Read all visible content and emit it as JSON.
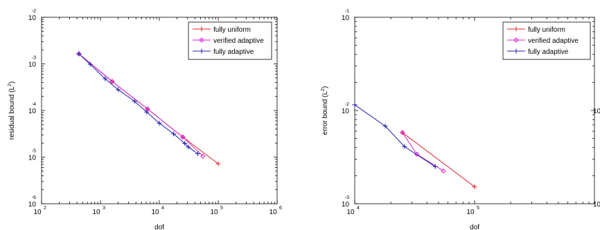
{
  "chart_data": [
    {
      "type": "line",
      "xscale": "log",
      "yscale": "log",
      "xlim": [
        100,
        1000000
      ],
      "ylim": [
        1e-06,
        0.01
      ],
      "xlabel": "dof",
      "ylabel": "residual bound (L",
      "ylabel_sup": "2",
      "ylabel_end": ")",
      "xticks": [
        {
          "base": "10",
          "exp": "2",
          "v": 100
        },
        {
          "base": "10",
          "exp": "3",
          "v": 1000
        },
        {
          "base": "10",
          "exp": "4",
          "v": 10000
        },
        {
          "base": "10",
          "exp": "5",
          "v": 100000
        },
        {
          "base": "10",
          "exp": "6",
          "v": 1000000
        }
      ],
      "yticks": [
        {
          "base": "10",
          "exp": "-2",
          "v": 0.01
        },
        {
          "base": "10",
          "exp": "-3",
          "v": 0.001
        },
        {
          "base": "10",
          "exp": "-4",
          "v": 0.0001
        },
        {
          "base": "10",
          "exp": "-5",
          "v": 1e-05
        },
        {
          "base": "10",
          "exp": "-6",
          "v": 1e-06
        }
      ],
      "legend_position": "top-right",
      "series": [
        {
          "name": "fully uniform",
          "color": "#e0202a",
          "marker": "plus",
          "x": [
            430,
            1580,
            6300,
            25000,
            100000
          ],
          "y": [
            0.00165,
            0.00042,
            0.000108,
            2.7e-05,
            7.2e-06
          ]
        },
        {
          "name": "verified adaptive",
          "color": "#d81fd8",
          "marker": "diamond",
          "x": [
            430,
            1580,
            6300,
            25000,
            55000
          ],
          "y": [
            0.00165,
            0.00042,
            0.000108,
            2.7e-05,
            1.05e-05
          ]
        },
        {
          "name": "fully adaptive",
          "color": "#1c1ca8",
          "marker": "plus",
          "x": [
            430,
            670,
            1200,
            2000,
            3800,
            6100,
            10000,
            17500,
            27000,
            31000,
            45000
          ],
          "y": [
            0.00165,
            0.00098,
            0.00048,
            0.00028,
            0.000158,
            9.25e-05,
            5.35e-05,
            3.15e-05,
            1.98e-05,
            1.65e-05,
            1.18e-05
          ]
        }
      ]
    },
    {
      "type": "line",
      "xscale": "log",
      "yscale": "log",
      "xlim": [
        10000,
        1000000
      ],
      "ylim": [
        0.001,
        0.1
      ],
      "xlabel": "dof",
      "ylabel": "error bound (L",
      "ylabel_sup": "2",
      "ylabel_end": ")",
      "xticks": [
        {
          "base": "10",
          "exp": "4",
          "v": 10000
        },
        {
          "base": "10",
          "exp": "5",
          "v": 100000
        }
      ],
      "yticks": [
        {
          "base": "10",
          "exp": "-1",
          "v": 0.1
        },
        {
          "base": "10",
          "exp": "-2",
          "v": 0.01
        },
        {
          "base": "10",
          "exp": "-3",
          "v": 0.001
        }
      ],
      "right_edge_ticks": [
        "10",
        "10"
      ],
      "legend_position": "top-right",
      "series": [
        {
          "name": "fully uniform",
          "color": "#e0202a",
          "marker": "plus",
          "x": [
            25000,
            100000
          ],
          "y": [
            0.0058,
            0.00152
          ]
        },
        {
          "name": "verified adaptive",
          "color": "#d81fd8",
          "marker": "diamond",
          "x": [
            25000,
            33000,
            55000
          ],
          "y": [
            0.0058,
            0.0034,
            0.00225
          ]
        },
        {
          "name": "fully adaptive",
          "color": "#1c1ca8",
          "marker": "plus",
          "x": [
            10000,
            18000,
            26000,
            47000
          ],
          "y": [
            0.0115,
            0.0068,
            0.0041,
            0.0025
          ]
        }
      ]
    }
  ]
}
